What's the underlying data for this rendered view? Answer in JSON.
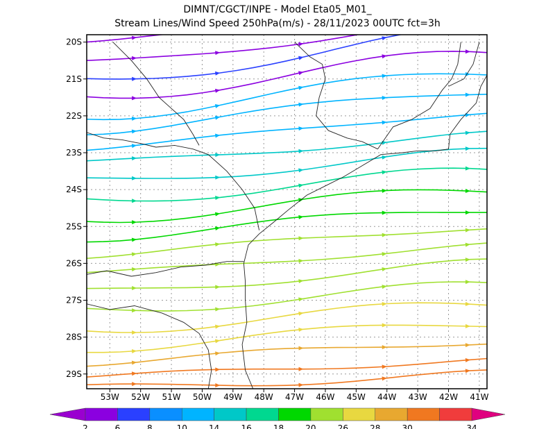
{
  "title": {
    "line1": "DIMNT/CGCT/INPE -  Model Eta05_M01_",
    "line2": "Stream Lines/Wind Speed 250hPa(m/s) -  28/11/2023 00UTC fct=3h"
  },
  "map": {
    "lon_range": [
      -53.75,
      -40.75
    ],
    "lat_range": [
      -29.4,
      -19.8
    ],
    "lon_ticks": [
      {
        "value": -53,
        "label": "53W"
      },
      {
        "value": -52,
        "label": "52W"
      },
      {
        "value": -51,
        "label": "51W"
      },
      {
        "value": -50,
        "label": "50W"
      },
      {
        "value": -49,
        "label": "49W"
      },
      {
        "value": -48,
        "label": "48W"
      },
      {
        "value": -47,
        "label": "47W"
      },
      {
        "value": -46,
        "label": "46W"
      },
      {
        "value": -45,
        "label": "45W"
      },
      {
        "value": -44,
        "label": "44W"
      },
      {
        "value": -43,
        "label": "43W"
      },
      {
        "value": -42,
        "label": "42W"
      },
      {
        "value": -41,
        "label": "41W"
      }
    ],
    "lat_ticks": [
      {
        "value": -20,
        "label": "20S"
      },
      {
        "value": -21,
        "label": "21S"
      },
      {
        "value": -22,
        "label": "22S"
      },
      {
        "value": -23,
        "label": "23S"
      },
      {
        "value": -24,
        "label": "24S"
      },
      {
        "value": -25,
        "label": "25S"
      },
      {
        "value": -26,
        "label": "26S"
      },
      {
        "value": -27,
        "label": "27S"
      },
      {
        "value": -28,
        "label": "28S"
      },
      {
        "value": -29,
        "label": "29S"
      }
    ],
    "grid": true,
    "coastline": [
      [
        -48.35,
        -29.4
      ],
      [
        -48.6,
        -28.9
      ],
      [
        -48.7,
        -28.2
      ],
      [
        -48.55,
        -27.6
      ],
      [
        -48.6,
        -27.0
      ],
      [
        -48.6,
        -26.5
      ],
      [
        -48.65,
        -26.0
      ],
      [
        -48.5,
        -25.5
      ],
      [
        -48.15,
        -25.2
      ],
      [
        -47.7,
        -24.9
      ],
      [
        -47.2,
        -24.55
      ],
      [
        -46.6,
        -24.15
      ],
      [
        -46.0,
        -23.9
      ],
      [
        -45.4,
        -23.65
      ],
      [
        -44.8,
        -23.35
      ],
      [
        -44.2,
        -23.05
      ],
      [
        -43.5,
        -23.0
      ],
      [
        -43.0,
        -22.95
      ],
      [
        -42.4,
        -22.95
      ],
      [
        -42.0,
        -22.9
      ],
      [
        -41.95,
        -22.5
      ],
      [
        -41.6,
        -22.1
      ],
      [
        -41.1,
        -21.65
      ],
      [
        -40.95,
        -21.2
      ],
      [
        -40.75,
        -20.9
      ]
    ],
    "borders": [
      [
        [
          -53.75,
          -26.3
        ],
        [
          -53.1,
          -26.2
        ],
        [
          -52.3,
          -26.35
        ],
        [
          -51.5,
          -26.25
        ],
        [
          -50.7,
          -26.1
        ],
        [
          -49.9,
          -26.05
        ],
        [
          -49.2,
          -25.95
        ],
        [
          -48.65,
          -25.95
        ]
      ],
      [
        [
          -53.75,
          -27.1
        ],
        [
          -53.0,
          -27.25
        ],
        [
          -52.2,
          -27.15
        ],
        [
          -51.3,
          -27.35
        ],
        [
          -50.6,
          -27.6
        ],
        [
          -50.1,
          -27.9
        ],
        [
          -49.8,
          -28.35
        ],
        [
          -49.7,
          -28.9
        ],
        [
          -49.8,
          -29.4
        ]
      ],
      [
        [
          -53.75,
          -22.45
        ],
        [
          -53.2,
          -22.6
        ],
        [
          -52.6,
          -22.65
        ],
        [
          -52.0,
          -22.75
        ],
        [
          -51.5,
          -22.85
        ],
        [
          -50.9,
          -22.8
        ],
        [
          -50.3,
          -22.9
        ],
        [
          -49.8,
          -23.05
        ],
        [
          -49.2,
          -23.5
        ],
        [
          -48.7,
          -24.0
        ],
        [
          -48.3,
          -24.5
        ],
        [
          -48.15,
          -25.1
        ]
      ],
      [
        [
          -52.9,
          -20.0
        ],
        [
          -52.3,
          -20.5
        ],
        [
          -51.8,
          -21.0
        ],
        [
          -51.4,
          -21.5
        ],
        [
          -51.0,
          -21.8
        ],
        [
          -50.6,
          -22.1
        ],
        [
          -50.3,
          -22.5
        ],
        [
          -50.1,
          -22.8
        ]
      ],
      [
        [
          -47.0,
          -20.0
        ],
        [
          -46.5,
          -20.4
        ],
        [
          -46.1,
          -20.6
        ],
        [
          -46.0,
          -21.0
        ],
        [
          -46.2,
          -21.5
        ],
        [
          -46.3,
          -22.0
        ],
        [
          -45.9,
          -22.4
        ],
        [
          -45.3,
          -22.6
        ],
        [
          -44.8,
          -22.7
        ],
        [
          -44.3,
          -22.9
        ]
      ],
      [
        [
          -44.3,
          -22.9
        ],
        [
          -43.8,
          -22.3
        ],
        [
          -43.2,
          -22.1
        ],
        [
          -42.6,
          -21.8
        ],
        [
          -42.2,
          -21.3
        ],
        [
          -41.9,
          -21.0
        ],
        [
          -41.7,
          -20.6
        ],
        [
          -41.6,
          -20.0
        ]
      ],
      [
        [
          -42.0,
          -21.2
        ],
        [
          -41.5,
          -21.0
        ],
        [
          -41.2,
          -20.6
        ],
        [
          -41.0,
          -20.0
        ]
      ]
    ],
    "flow_rows": [
      {
        "lat_left": -20.0,
        "lat_right": -19.0,
        "speed": 3
      },
      {
        "lat_left": -20.6,
        "lat_right": -19.4,
        "speed": 5
      },
      {
        "lat_left": -21.1,
        "lat_right": -19.7,
        "speed": 6
      },
      {
        "lat_left": -21.5,
        "lat_right": -20.3,
        "speed": 4
      },
      {
        "lat_left": -22.0,
        "lat_right": -20.8,
        "speed": 11
      },
      {
        "lat_left": -22.4,
        "lat_right": -21.3,
        "speed": 12
      },
      {
        "lat_left": -22.9,
        "lat_right": -21.9,
        "speed": 13
      },
      {
        "lat_left": -23.3,
        "lat_right": -22.5,
        "speed": 14
      },
      {
        "lat_left": -23.8,
        "lat_right": -23.0,
        "speed": 15
      },
      {
        "lat_left": -24.3,
        "lat_right": -23.5,
        "speed": 16
      },
      {
        "lat_left": -24.8,
        "lat_right": -24.0,
        "speed": 18
      },
      {
        "lat_left": -25.3,
        "lat_right": -24.5,
        "speed": 19
      },
      {
        "lat_left": -25.8,
        "lat_right": -25.0,
        "speed": 20
      },
      {
        "lat_left": -26.3,
        "lat_right": -25.5,
        "speed": 22
      },
      {
        "lat_left": -26.8,
        "lat_right": -26.0,
        "speed": 23
      },
      {
        "lat_left": -27.3,
        "lat_right": -26.6,
        "speed": 24
      },
      {
        "lat_left": -27.8,
        "lat_right": -27.1,
        "speed": 26
      },
      {
        "lat_left": -28.3,
        "lat_right": -27.6,
        "speed": 27
      },
      {
        "lat_left": -28.7,
        "lat_right": -28.1,
        "speed": 28
      },
      {
        "lat_left": -29.1,
        "lat_right": -28.6,
        "speed": 30
      },
      {
        "lat_left": -29.4,
        "lat_right": -29.0,
        "speed": 33
      }
    ]
  },
  "colorbar": {
    "labels": [
      "2",
      "6",
      "8",
      "10",
      "14",
      "16",
      "18",
      "20",
      "26",
      "28",
      "30",
      "34"
    ],
    "left_color": "#9a00d0",
    "right_color": "#e0007f",
    "colors": [
      "#8b00e0",
      "#2a40ff",
      "#0a8fff",
      "#00b4ff",
      "#00c8c8",
      "#00d890",
      "#00d800",
      "#a0e030",
      "#e8d840",
      "#e8a830",
      "#f07820",
      "#f03c3c"
    ]
  }
}
